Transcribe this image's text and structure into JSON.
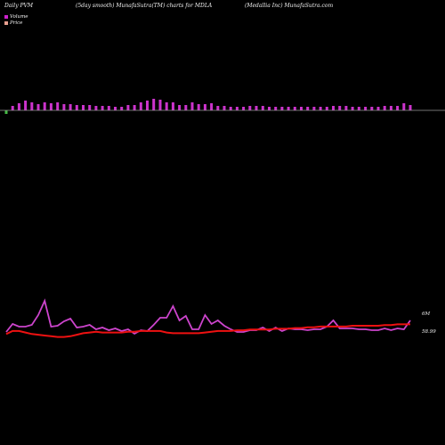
{
  "header": {
    "left": "Daily PVM",
    "center": "(5day smooth) MunafaSutra(TM) charts for MDLA",
    "right": "(Medallia  Inc) MunafaSutra.com"
  },
  "legend": {
    "volume_label": "Volume",
    "price_label": "Price",
    "volume_color": "#cc22cc",
    "price_color": "#e8a090"
  },
  "chart_data": {
    "type": "bar",
    "series": [
      {
        "name": "Volume",
        "color": "#cc33cc",
        "values": [
          6,
          5,
          8,
          11,
          9,
          7,
          9,
          8,
          9,
          7,
          7,
          6,
          6,
          6,
          5,
          5,
          5,
          4,
          4,
          6,
          6,
          9,
          11,
          13,
          12,
          9,
          9,
          6,
          6,
          9,
          7,
          7,
          8,
          5,
          5,
          4,
          4,
          4,
          5,
          5,
          5,
          4,
          4,
          4,
          4,
          4,
          4,
          4,
          4,
          4,
          4,
          5,
          5,
          5,
          4,
          4,
          4,
          4,
          4,
          5,
          5,
          5,
          8,
          6
        ]
      },
      {
        "name": "Volume line",
        "color": "#cc44cc",
        "values": [
          5.7,
          6.6,
          6.3,
          6.3,
          6.5,
          7.6,
          9.2,
          6.3,
          6.4,
          6.9,
          7.2,
          6.2,
          6.3,
          6.5,
          6,
          6.2,
          5.9,
          6.1,
          5.8,
          6,
          5.5,
          5.9,
          5.8,
          6.5,
          7.3,
          7.3,
          8.6,
          7,
          7.5,
          6,
          6,
          7.6,
          6.6,
          7,
          6.4,
          6,
          5.7,
          5.7,
          5.9,
          5.9,
          6.2,
          5.8,
          6.2,
          5.8,
          6.1,
          6,
          6,
          5.9,
          6,
          6,
          6.3,
          7,
          6.1,
          6.1,
          6.1,
          6,
          6,
          5.9,
          5.9,
          6.1,
          5.9,
          6.1,
          6,
          7
        ]
      },
      {
        "name": "Price",
        "color": "#ee1111",
        "values": [
          58.78,
          58.82,
          58.82,
          58.8,
          58.78,
          58.77,
          58.76,
          58.75,
          58.74,
          58.74,
          58.75,
          58.77,
          58.79,
          58.8,
          58.81,
          58.8,
          58.8,
          58.8,
          58.8,
          58.81,
          58.81,
          58.82,
          58.82,
          58.82,
          58.82,
          58.8,
          58.79,
          58.79,
          58.79,
          58.79,
          58.79,
          58.8,
          58.81,
          58.82,
          58.82,
          58.82,
          58.83,
          58.83,
          58.84,
          58.84,
          58.84,
          58.84,
          58.85,
          58.85,
          58.85,
          58.86,
          58.86,
          58.87,
          58.87,
          58.88,
          58.88,
          58.88,
          58.88,
          58.88,
          58.89,
          58.89,
          58.89,
          58.89,
          58.89,
          58.9,
          58.9,
          58.91,
          58.91,
          58.91
        ]
      }
    ],
    "annotations": {
      "volume_last": "6M",
      "price_last": "58.99"
    },
    "negative_color": "#44bb44",
    "negative_index": 0,
    "baseline_color": "#999999"
  }
}
